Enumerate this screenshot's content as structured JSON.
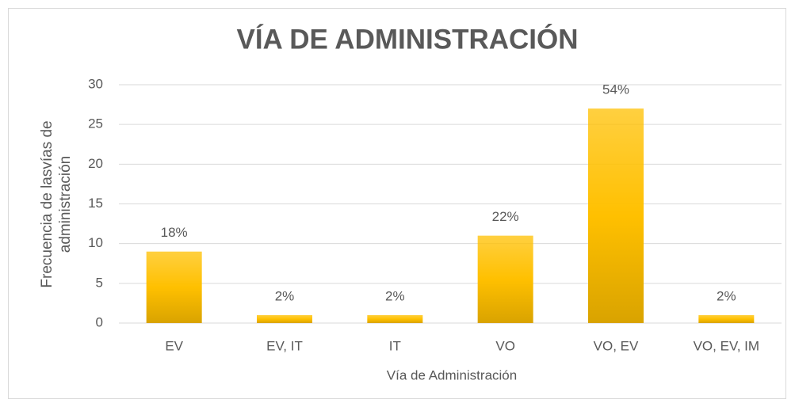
{
  "chart_data": {
    "type": "bar",
    "title": "VÍA DE ADMINISTRACIÓN",
    "categories": [
      "EV",
      "EV, IT",
      "IT",
      "VO",
      "VO, EV",
      "VO, EV, IM"
    ],
    "values": [
      9,
      1,
      1,
      11,
      27,
      1
    ],
    "value_labels": [
      "18%",
      "2%",
      "2%",
      "22%",
      "54%",
      "2%"
    ],
    "color": "#ffc000",
    "xlabel": "Vía de Administración",
    "ylabel": [
      "Frecuencia de lasvías de",
      "administración"
    ],
    "ylim": [
      0,
      30
    ],
    "yticks": [
      0,
      5,
      10,
      15,
      20,
      25,
      30
    ],
    "grid": true
  }
}
